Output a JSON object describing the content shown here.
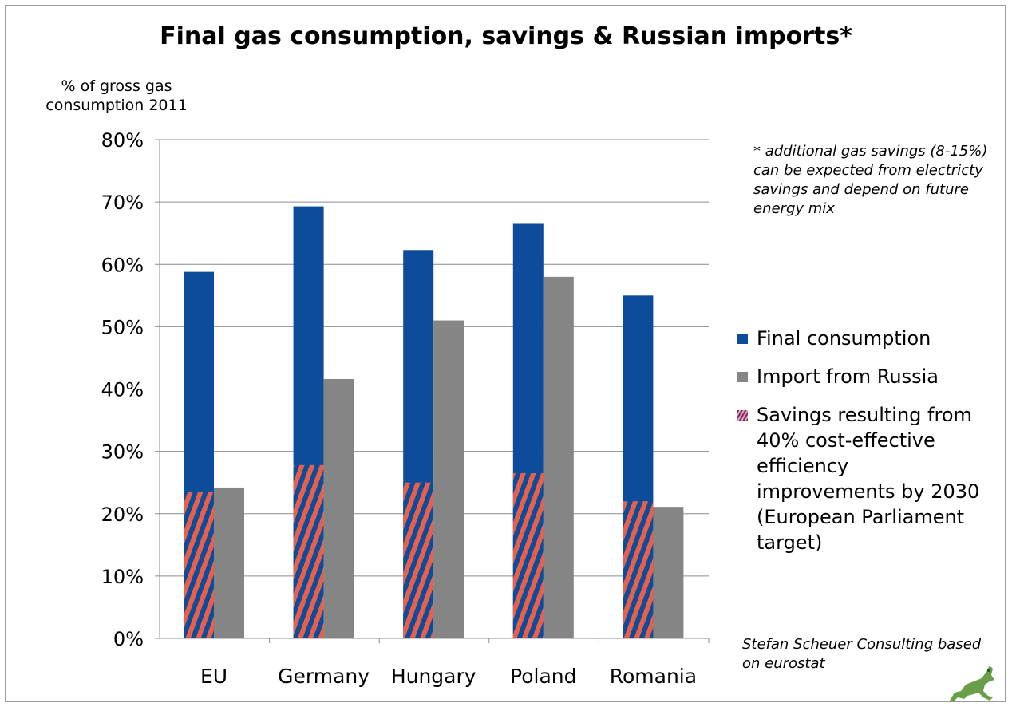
{
  "chart_data": {
    "type": "bar",
    "title": "Final gas consumption, savings & Russian imports*",
    "ylabel": "% of gross gas consumption 2011",
    "ylim": [
      0,
      80
    ],
    "yticks": [
      "0%",
      "10%",
      "20%",
      "30%",
      "40%",
      "50%",
      "60%",
      "70%",
      "80%"
    ],
    "categories": [
      "EU",
      "Germany",
      "Hungary",
      "Poland",
      "Romania"
    ],
    "series": [
      {
        "name": "Final consumption",
        "values": [
          58.8,
          69.3,
          62.3,
          66.5,
          55.0
        ],
        "color": "#0d4c9a"
      },
      {
        "name": "Import from Russia",
        "values": [
          24.2,
          41.6,
          51.0,
          58.0,
          21.1
        ],
        "color": "#858585"
      },
      {
        "name": "Savings resulting from 40% cost-effective efficiency improvements by 2030 (European Parliament target)",
        "values": [
          23.5,
          27.8,
          25.0,
          26.5,
          22.0
        ],
        "color": "#e8604a"
      }
    ],
    "grid": true,
    "legend": "right",
    "annotation": "* additional gas savings (8-15%) can be expected from electricty savings and depend on future energy mix",
    "credit": "Stefan Scheuer Consulting based on eurostat"
  }
}
